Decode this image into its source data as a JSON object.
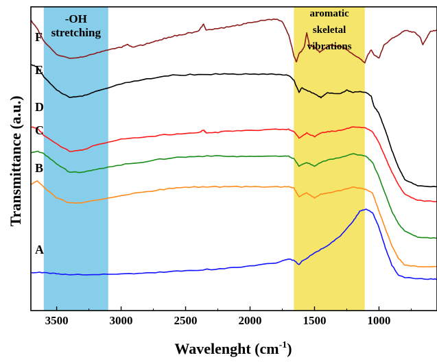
{
  "chart_data": {
    "type": "line",
    "xlabel": "Wavelenght (cm",
    "xlabel_superscript": "-1",
    "xlabel_close": ")",
    "ylabel": "Transmittance (a.u.)",
    "xlim": [
      3700,
      550
    ],
    "x_reversed": true,
    "x_ticks": [
      3500,
      3000,
      2500,
      2000,
      1500,
      1000
    ],
    "x_tick_labels": [
      "3500",
      "3000",
      "2500",
      "2000",
      "1500",
      "1000"
    ],
    "y_ticks_shown": false,
    "grid": false,
    "legend": "none",
    "bands": [
      {
        "from": 3600,
        "to": 3100,
        "color": "#87ceeb",
        "label_lines": [
          "-OH",
          "stretching"
        ]
      },
      {
        "from": 1660,
        "to": 1110,
        "color": "#f5e56b",
        "label_lines": [
          "aromatic",
          "skeletal",
          "vibrations"
        ]
      }
    ],
    "series": [
      {
        "name": "A",
        "color": "#1414ff",
        "points": [
          [
            3700,
            0.0
          ],
          [
            3600,
            0.01
          ],
          [
            3500,
            -0.05
          ],
          [
            3400,
            -0.08
          ],
          [
            3200,
            -0.08
          ],
          [
            3000,
            -0.05
          ],
          [
            2800,
            -0.02
          ],
          [
            2600,
            0.05
          ],
          [
            2400,
            0.1
          ],
          [
            2200,
            0.17
          ],
          [
            2000,
            0.27
          ],
          [
            1800,
            0.4
          ],
          [
            1700,
            0.55
          ],
          [
            1660,
            0.5
          ],
          [
            1620,
            0.32
          ],
          [
            1600,
            0.45
          ],
          [
            1500,
            0.8
          ],
          [
            1400,
            1.1
          ],
          [
            1300,
            1.5
          ],
          [
            1200,
            2.1
          ],
          [
            1150,
            2.5
          ],
          [
            1100,
            2.6
          ],
          [
            1050,
            2.45
          ],
          [
            1000,
            1.85
          ],
          [
            950,
            1.0
          ],
          [
            900,
            0.3
          ],
          [
            850,
            -0.1
          ],
          [
            800,
            -0.2
          ],
          [
            700,
            -0.25
          ],
          [
            600,
            -0.26
          ],
          [
            550,
            -0.26
          ]
        ]
      },
      {
        "name": "B",
        "color": "#ff8c1a",
        "points": [
          [
            3700,
            3.6
          ],
          [
            3650,
            3.75
          ],
          [
            3600,
            3.5
          ],
          [
            3500,
            3.05
          ],
          [
            3400,
            2.85
          ],
          [
            3300,
            2.85
          ],
          [
            3200,
            2.95
          ],
          [
            3000,
            3.15
          ],
          [
            2800,
            3.3
          ],
          [
            2600,
            3.45
          ],
          [
            2400,
            3.5
          ],
          [
            2200,
            3.5
          ],
          [
            2000,
            3.5
          ],
          [
            1800,
            3.5
          ],
          [
            1700,
            3.5
          ],
          [
            1660,
            3.45
          ],
          [
            1620,
            3.1
          ],
          [
            1560,
            3.25
          ],
          [
            1500,
            3.05
          ],
          [
            1450,
            3.2
          ],
          [
            1400,
            3.25
          ],
          [
            1300,
            3.35
          ],
          [
            1200,
            3.5
          ],
          [
            1100,
            3.4
          ],
          [
            1050,
            3.25
          ],
          [
            1000,
            2.5
          ],
          [
            950,
            1.8
          ],
          [
            900,
            1.1
          ],
          [
            850,
            0.6
          ],
          [
            800,
            0.3
          ],
          [
            700,
            0.25
          ],
          [
            550,
            0.25
          ]
        ]
      },
      {
        "name": "C",
        "color": "#1a8c1a",
        "points": [
          [
            3700,
            4.9
          ],
          [
            3650,
            4.95
          ],
          [
            3600,
            4.85
          ],
          [
            3500,
            4.45
          ],
          [
            3400,
            4.1
          ],
          [
            3300,
            4.1
          ],
          [
            3200,
            4.2
          ],
          [
            3000,
            4.4
          ],
          [
            2800,
            4.55
          ],
          [
            2600,
            4.7
          ],
          [
            2400,
            4.75
          ],
          [
            2200,
            4.75
          ],
          [
            2000,
            4.75
          ],
          [
            1800,
            4.75
          ],
          [
            1700,
            4.75
          ],
          [
            1660,
            4.65
          ],
          [
            1620,
            4.35
          ],
          [
            1560,
            4.5
          ],
          [
            1500,
            4.35
          ],
          [
            1450,
            4.5
          ],
          [
            1400,
            4.6
          ],
          [
            1300,
            4.7
          ],
          [
            1200,
            4.85
          ],
          [
            1100,
            4.75
          ],
          [
            1050,
            4.5
          ],
          [
            1000,
            3.9
          ],
          [
            950,
            3.2
          ],
          [
            900,
            2.5
          ],
          [
            850,
            2.0
          ],
          [
            800,
            1.7
          ],
          [
            700,
            1.45
          ],
          [
            550,
            1.4
          ]
        ]
      },
      {
        "name": "D",
        "color": "#ff1a1a",
        "points": [
          [
            3700,
            5.95
          ],
          [
            3650,
            5.9
          ],
          [
            3600,
            5.6
          ],
          [
            3500,
            5.25
          ],
          [
            3400,
            4.95
          ],
          [
            3300,
            5.0
          ],
          [
            3200,
            5.2
          ],
          [
            3000,
            5.45
          ],
          [
            2800,
            5.55
          ],
          [
            2600,
            5.65
          ],
          [
            2400,
            5.7
          ],
          [
            2360,
            5.82
          ],
          [
            2340,
            5.7
          ],
          [
            2200,
            5.75
          ],
          [
            2000,
            5.8
          ],
          [
            1800,
            5.85
          ],
          [
            1700,
            5.85
          ],
          [
            1660,
            5.75
          ],
          [
            1620,
            5.5
          ],
          [
            1560,
            5.7
          ],
          [
            1500,
            5.55
          ],
          [
            1450,
            5.7
          ],
          [
            1400,
            5.75
          ],
          [
            1300,
            5.8
          ],
          [
            1200,
            5.95
          ],
          [
            1100,
            5.9
          ],
          [
            1050,
            5.75
          ],
          [
            1000,
            5.3
          ],
          [
            950,
            4.7
          ],
          [
            900,
            4.1
          ],
          [
            850,
            3.6
          ],
          [
            800,
            3.2
          ],
          [
            700,
            2.95
          ],
          [
            550,
            2.9
          ]
        ]
      },
      {
        "name": "E",
        "color": "#000000",
        "points": [
          [
            3700,
            8.5
          ],
          [
            3650,
            8.4
          ],
          [
            3600,
            8.0
          ],
          [
            3500,
            7.45
          ],
          [
            3400,
            7.15
          ],
          [
            3300,
            7.2
          ],
          [
            3200,
            7.4
          ],
          [
            3000,
            7.7
          ],
          [
            2800,
            7.9
          ],
          [
            2600,
            8.05
          ],
          [
            2400,
            8.1
          ],
          [
            2200,
            8.1
          ],
          [
            2000,
            8.1
          ],
          [
            1800,
            8.1
          ],
          [
            1700,
            8.05
          ],
          [
            1660,
            7.85
          ],
          [
            1620,
            7.35
          ],
          [
            1600,
            7.55
          ],
          [
            1560,
            7.45
          ],
          [
            1500,
            7.3
          ],
          [
            1450,
            7.15
          ],
          [
            1400,
            7.35
          ],
          [
            1300,
            7.3
          ],
          [
            1250,
            7.45
          ],
          [
            1200,
            7.35
          ],
          [
            1150,
            7.4
          ],
          [
            1100,
            7.35
          ],
          [
            1060,
            7.2
          ],
          [
            1040,
            6.8
          ],
          [
            1000,
            6.5
          ],
          [
            950,
            5.8
          ],
          [
            900,
            5.0
          ],
          [
            850,
            4.3
          ],
          [
            800,
            3.8
          ],
          [
            700,
            3.55
          ],
          [
            550,
            3.5
          ]
        ]
      },
      {
        "name": "F",
        "color": "#8b1a1a",
        "points": [
          [
            3700,
            10.3
          ],
          [
            3650,
            9.95
          ],
          [
            3600,
            9.45
          ],
          [
            3500,
            8.9
          ],
          [
            3400,
            8.75
          ],
          [
            3300,
            8.8
          ],
          [
            3200,
            8.95
          ],
          [
            3100,
            9.1
          ],
          [
            3000,
            9.2
          ],
          [
            2950,
            9.3
          ],
          [
            2900,
            9.2
          ],
          [
            2800,
            9.35
          ],
          [
            2700,
            9.5
          ],
          [
            2600,
            9.65
          ],
          [
            2500,
            9.75
          ],
          [
            2400,
            9.85
          ],
          [
            2360,
            10.15
          ],
          [
            2340,
            9.9
          ],
          [
            2200,
            10.0
          ],
          [
            2100,
            10.1
          ],
          [
            2000,
            10.2
          ],
          [
            1900,
            10.3
          ],
          [
            1800,
            10.35
          ],
          [
            1750,
            10.25
          ],
          [
            1700,
            9.7
          ],
          [
            1680,
            9.3
          ],
          [
            1660,
            8.85
          ],
          [
            1640,
            8.6
          ],
          [
            1620,
            8.95
          ],
          [
            1600,
            9.05
          ],
          [
            1580,
            9.2
          ],
          [
            1560,
            9.8
          ],
          [
            1540,
            9.3
          ],
          [
            1500,
            9.2
          ],
          [
            1460,
            9.0
          ],
          [
            1420,
            9.15
          ],
          [
            1380,
            9.3
          ],
          [
            1350,
            9.25
          ],
          [
            1300,
            9.25
          ],
          [
            1260,
            9.15
          ],
          [
            1200,
            8.9
          ],
          [
            1150,
            8.75
          ],
          [
            1110,
            8.55
          ],
          [
            1090,
            8.85
          ],
          [
            1060,
            9.1
          ],
          [
            1040,
            8.9
          ],
          [
            1000,
            8.75
          ],
          [
            960,
            9.3
          ],
          [
            900,
            9.55
          ],
          [
            850,
            9.7
          ],
          [
            800,
            9.9
          ],
          [
            760,
            9.85
          ],
          [
            720,
            9.8
          ],
          [
            680,
            9.6
          ],
          [
            660,
            9.3
          ],
          [
            640,
            9.5
          ],
          [
            600,
            9.85
          ],
          [
            550,
            9.9
          ]
        ]
      }
    ],
    "series_label_order": [
      "F",
      "E",
      "D",
      "C",
      "B",
      "A"
    ]
  }
}
